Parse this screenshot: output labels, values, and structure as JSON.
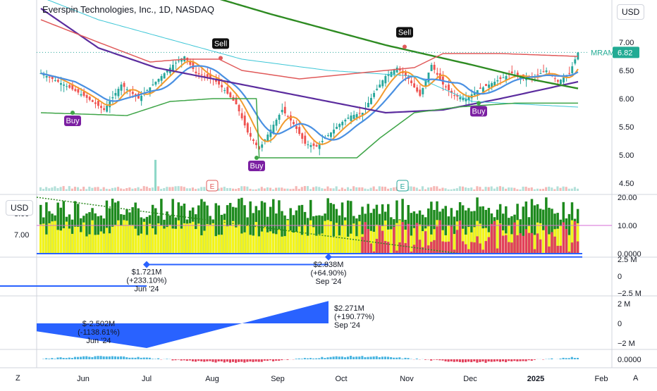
{
  "header": {
    "title": "Everspin Technologies, Inc., 1D, NASDAQ"
  },
  "currency": {
    "main": "USD",
    "panel2": "USD"
  },
  "corner": {
    "left": "Z",
    "right": "A"
  },
  "colors": {
    "up": "#26a69a",
    "down": "#ef5350",
    "ma_long": "#2e8b22",
    "ma_mid": "#5b2c9e",
    "ma_blue": "#4a90e2",
    "ma_orange": "#f29a2e",
    "band_upper": "#e05a5a",
    "band_lower": "#3fa548",
    "cyan": "#3cc6d6",
    "buy": "#7b1fa2",
    "sell": "#111111",
    "vol_green": "#1d8a1d",
    "vol_yellow": "#f5f51c",
    "vol_red": "#e23f5a",
    "bar_blue": "#2962ff",
    "price_tag": "#22ab94"
  },
  "chart_data": {
    "type": "candlestick",
    "symbol": "MRAM",
    "last_price": "6.82",
    "price_axis": {
      "ticks": [
        "7.00",
        "6.50",
        "6.00",
        "5.50",
        "5.00",
        "4.50"
      ],
      "range": [
        4.35,
        7.75
      ]
    },
    "x_axis": {
      "ticks": [
        "Jun",
        "Jul",
        "Aug",
        "Sep",
        "Oct",
        "Nov",
        "Dec",
        "2025",
        "Feb"
      ],
      "start_date": "2024-05-10",
      "end_date": "2025-02-06"
    },
    "signals": [
      {
        "label": "Buy",
        "date": "2024-05-27",
        "price": 5.75
      },
      {
        "label": "Buy",
        "date": "2024-08-22",
        "price": 4.95
      },
      {
        "label": "Sell",
        "date": "2024-08-05",
        "price": 6.72
      },
      {
        "label": "Sell",
        "date": "2024-10-31",
        "price": 6.92
      },
      {
        "label": "Buy",
        "date": "2024-12-05",
        "price": 5.92
      }
    ],
    "earnings_markers": [
      {
        "label": "E",
        "date": "2024-08-01"
      },
      {
        "label": "E",
        "date": "2024-10-30"
      }
    ],
    "volume_panel": {
      "ticks_right": [
        "20.00",
        "10.00",
        "0.0000"
      ],
      "ticks_left": [
        "8.00",
        "7.00"
      ],
      "range": [
        0,
        20
      ]
    },
    "cashflow_panel": {
      "ticks": [
        "2.5 M",
        "0",
        "−2.5 M"
      ],
      "range": [
        -2.5,
        2.5
      ],
      "annotations": [
        {
          "line1": "$1.721M",
          "line2": "(+233.10%)",
          "line3": "Jun '24",
          "value": 1.721
        },
        {
          "line1": "$2.838M",
          "line2": "(+64.90%)",
          "line3": "Sep '24",
          "value": 2.838
        }
      ]
    },
    "income_panel": {
      "ticks": [
        "2 M",
        "0",
        "−2 M"
      ],
      "range": [
        -2.5,
        2.5
      ],
      "annotations": [
        {
          "line1": "$-2.502M",
          "line2": "(-1138.61%)",
          "line3": "Jun '24",
          "value": -2.502
        },
        {
          "line1": "$2.271M",
          "line2": "(+190.77%)",
          "line3": "Sep '24",
          "value": 2.271
        }
      ]
    },
    "oscillator_panel": {
      "ticks": [
        "0.0000"
      ]
    }
  }
}
